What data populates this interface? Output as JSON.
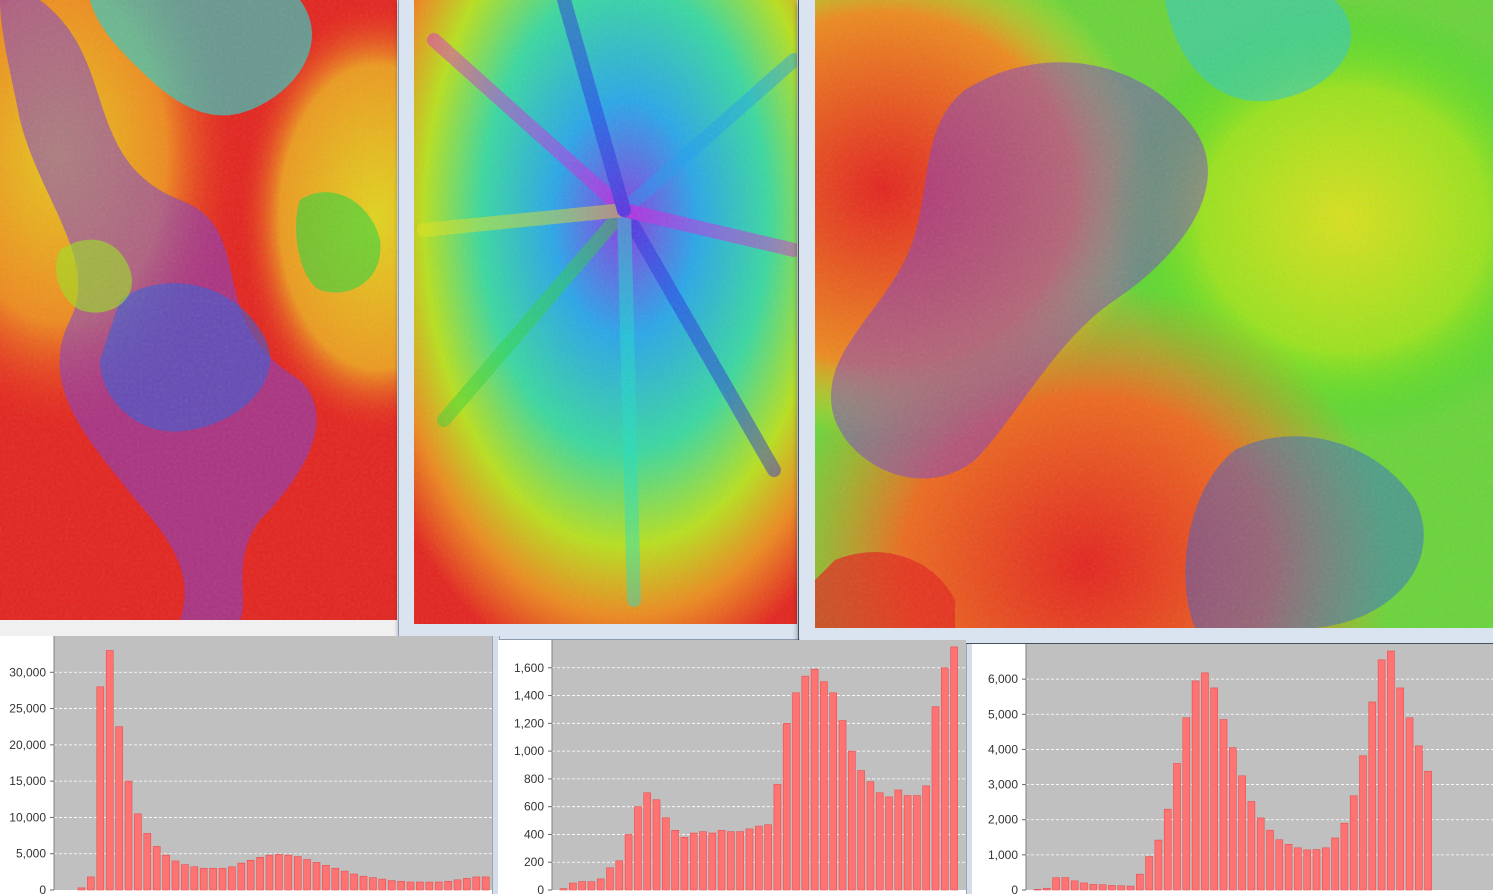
{
  "colors": {
    "plot_background": "#c0c0c0",
    "bar_fill": "#ff7373",
    "bar_stroke": "#e65050",
    "gridline": "#ffffff",
    "fractal_palette": [
      "#e51f1f",
      "#ee7a1f",
      "#ece21e",
      "#8fe21e",
      "#22dc22",
      "#22e0c8",
      "#1e9ef0",
      "#2828e0",
      "#e020e0"
    ]
  },
  "fractal_windows": [
    {
      "name": "fractal-window-1",
      "image": "julia-fractal"
    },
    {
      "name": "fractal-window-2",
      "image": "julia-fractal"
    },
    {
      "name": "fractal-window-3",
      "image": "julia-fractal"
    }
  ],
  "chart_data": [
    {
      "type": "bar",
      "title": "",
      "xlabel": "",
      "ylabel": "",
      "grid": true,
      "ylim": [
        0,
        35000
      ],
      "yticks": [
        "0",
        "5,000",
        "10,000",
        "15,000",
        "20,000",
        "25,000",
        "30,000"
      ],
      "yticks_values": [
        0,
        5000,
        10000,
        15000,
        20000,
        25000,
        30000
      ],
      "values": [
        300,
        1800,
        28000,
        33000,
        22500,
        15000,
        10500,
        7800,
        6000,
        4800,
        4000,
        3500,
        3200,
        3000,
        3000,
        3000,
        3200,
        3700,
        4100,
        4500,
        4800,
        4900,
        4800,
        4600,
        4200,
        3800,
        3400,
        3000,
        2600,
        2200,
        1900,
        1700,
        1500,
        1300,
        1200,
        1100,
        1100,
        1100,
        1100,
        1200,
        1400,
        1600,
        1800,
        1800
      ]
    },
    {
      "type": "bar",
      "title": "",
      "xlabel": "",
      "ylabel": "",
      "grid": true,
      "ylim": [
        0,
        1800
      ],
      "yticks": [
        "0",
        "200",
        "400",
        "600",
        "800",
        "1,000",
        "1,200",
        "1,400",
        "1,600"
      ],
      "yticks_values": [
        0,
        200,
        400,
        600,
        800,
        1000,
        1200,
        1400,
        1600
      ],
      "values": [
        10,
        50,
        60,
        60,
        80,
        160,
        210,
        400,
        600,
        700,
        650,
        520,
        430,
        380,
        410,
        420,
        410,
        430,
        420,
        420,
        440,
        460,
        470,
        760,
        1200,
        1420,
        1540,
        1590,
        1500,
        1420,
        1220,
        1000,
        860,
        780,
        700,
        670,
        720,
        680,
        680,
        750,
        1320,
        1600,
        1750
      ]
    },
    {
      "type": "bar",
      "title": "",
      "xlabel": "",
      "ylabel": "",
      "grid": true,
      "ylim": [
        0,
        7000
      ],
      "yticks": [
        "0",
        "1,000",
        "2,000",
        "3,000",
        "4,000",
        "5,000",
        "6,000"
      ],
      "yticks_values": [
        0,
        1000,
        2000,
        3000,
        4000,
        5000,
        6000
      ],
      "values": [
        20,
        50,
        350,
        350,
        260,
        200,
        160,
        150,
        130,
        120,
        110,
        450,
        950,
        1420,
        2300,
        3600,
        4900,
        5950,
        6180,
        5750,
        4850,
        4050,
        3250,
        2520,
        2050,
        1700,
        1430,
        1300,
        1200,
        1140,
        1150,
        1200,
        1480,
        1900,
        2680,
        3820,
        5350,
        6550,
        6800,
        5750,
        4900,
        4100,
        3380
      ]
    }
  ]
}
